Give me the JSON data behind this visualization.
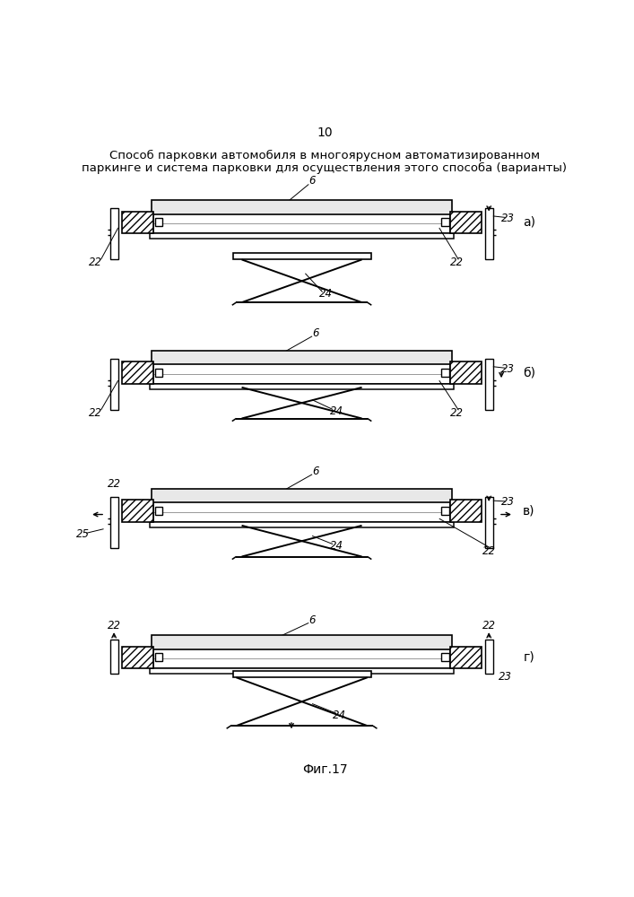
{
  "page_number": "10",
  "title_line1": "Способ парковки автомобиля в многоярусном автоматизированном",
  "title_line2": "паркинге и система парковки для осуществления этого способа (варианты)",
  "fig_label": "Фиг.17",
  "bg_color": "#ffffff"
}
